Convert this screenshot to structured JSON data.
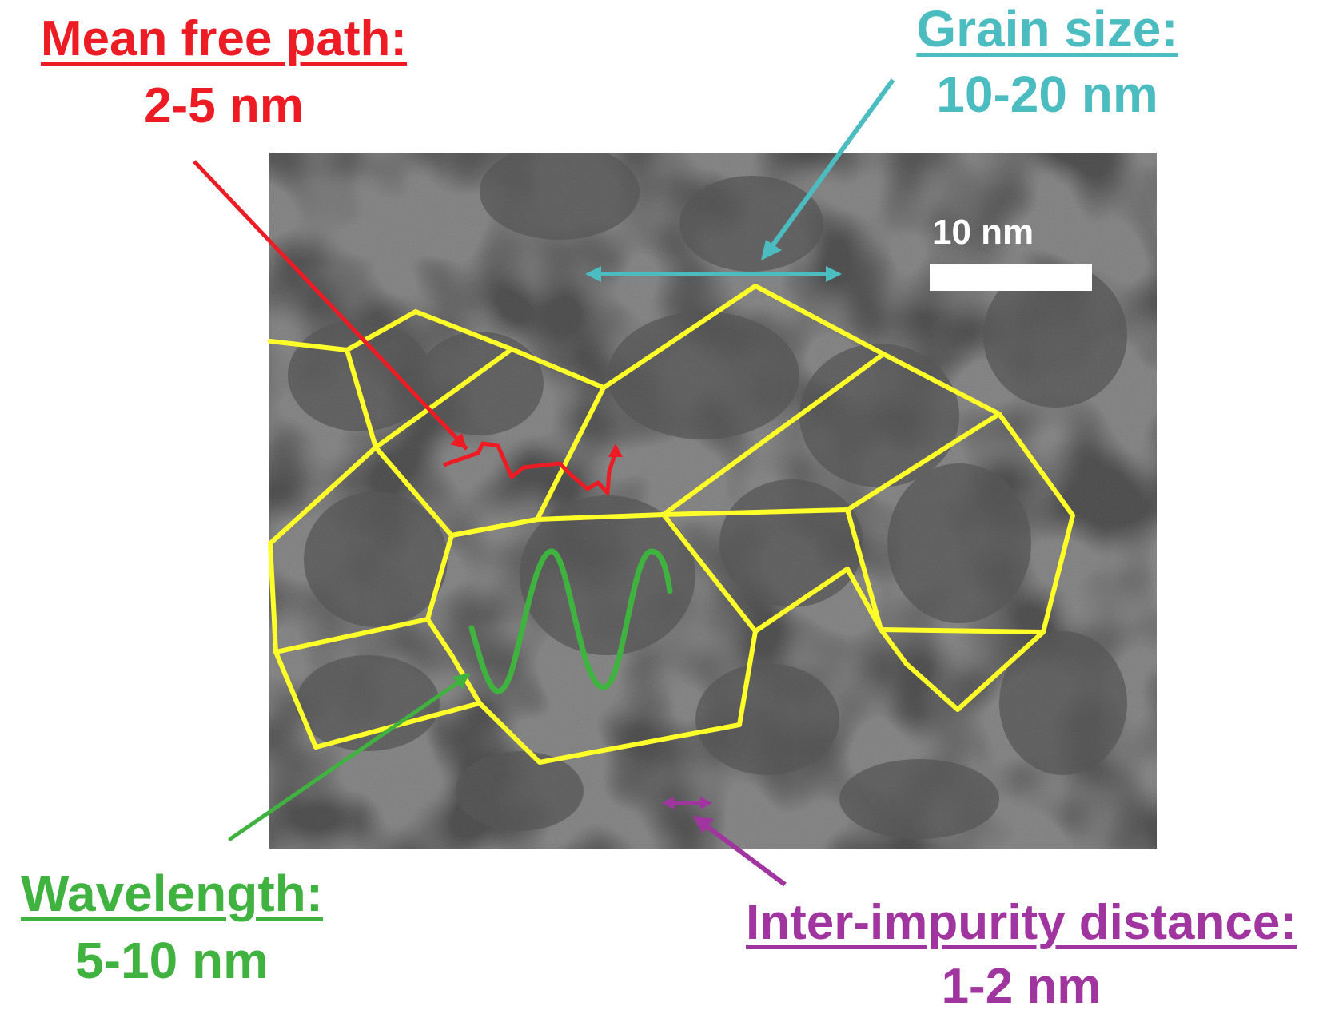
{
  "annotations": {
    "mean_free_path": {
      "title": "Mean free path:",
      "value": "2-5 nm"
    },
    "grain_size": {
      "title": "Grain size:",
      "value": "10-20 nm"
    },
    "wavelength": {
      "title": "Wavelength:",
      "value": "5-10 nm"
    },
    "inter_impurity": {
      "title": "Inter-impurity distance:",
      "value": "1-2 nm"
    }
  },
  "scale_bar": {
    "label": "10 nm"
  },
  "colors": {
    "mean_free_path": "#ed1c24",
    "grain_size": "#4bbdc1",
    "wavelength": "#3fb23f",
    "inter_impurity": "#a0359f",
    "grain_boundary": "#ffff2a",
    "micrograph_dark": "#2b2b2b"
  }
}
